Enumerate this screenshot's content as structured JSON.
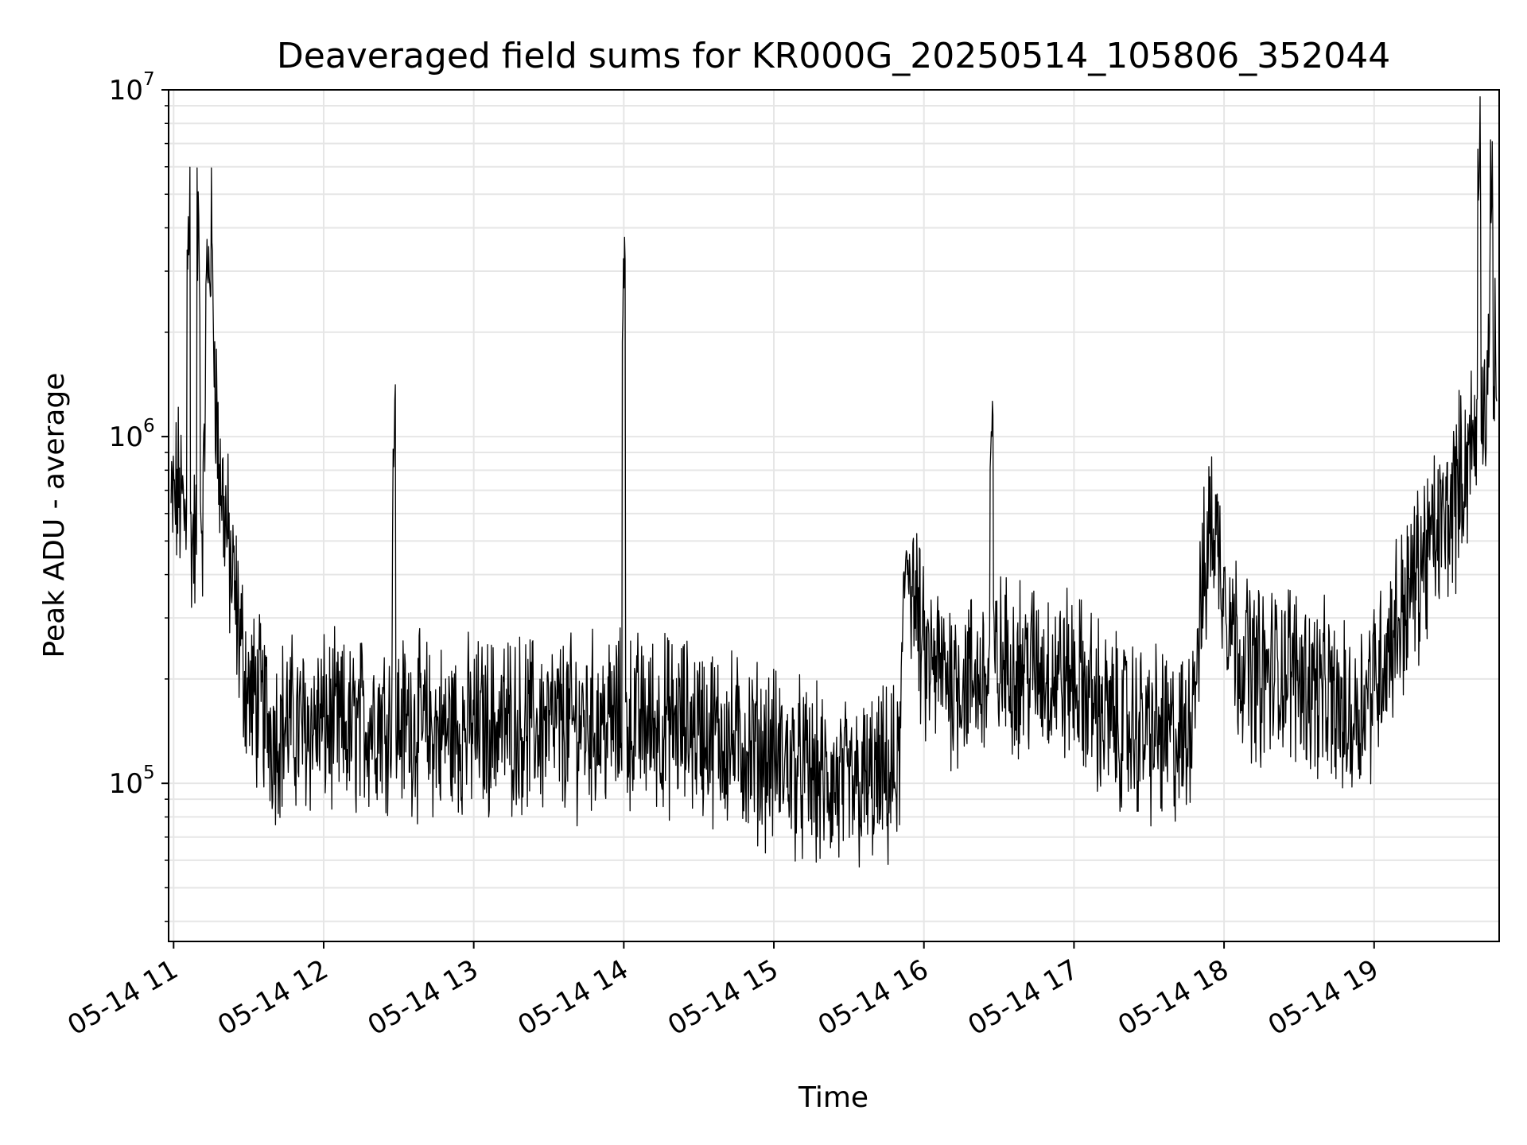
{
  "chart_data": {
    "type": "line",
    "title": "Deaveraged field sums for KR000G_20250514_105806_352044",
    "xlabel": "Time",
    "ylabel": "Peak ADU - average",
    "yscale": "log",
    "ylim": [
      35000,
      10000000
    ],
    "xlim": [
      "2025-05-14 10:58",
      "2025-05-14 19:50"
    ],
    "grid": true,
    "line_color": "#000000",
    "grid_color": "#e6e6e6",
    "x_ticks": [
      {
        "t": "2025-05-14 11:00",
        "label": "05-14 11"
      },
      {
        "t": "2025-05-14 12:00",
        "label": "05-14 12"
      },
      {
        "t": "2025-05-14 13:00",
        "label": "05-14 13"
      },
      {
        "t": "2025-05-14 14:00",
        "label": "05-14 14"
      },
      {
        "t": "2025-05-14 15:00",
        "label": "05-14 15"
      },
      {
        "t": "2025-05-14 16:00",
        "label": "05-14 16"
      },
      {
        "t": "2025-05-14 17:00",
        "label": "05-14 17"
      },
      {
        "t": "2025-05-14 18:00",
        "label": "05-14 18"
      },
      {
        "t": "2025-05-14 19:00",
        "label": "05-14 19"
      }
    ],
    "y_ticks": [
      {
        "value": 100000,
        "base": "10",
        "exp": "5"
      },
      {
        "value": 1000000,
        "base": "10",
        "exp": "6"
      },
      {
        "value": 10000000,
        "base": "10",
        "exp": "7"
      }
    ],
    "series": [
      {
        "points": [
          [
            "2025-05-14 10:59",
            600000
          ],
          [
            "2025-05-14 11:02",
            700000
          ],
          [
            "2025-05-14 11:05",
            550000
          ],
          [
            "2025-05-14 11:06",
            4500000
          ],
          [
            "2025-05-14 11:07",
            500000
          ],
          [
            "2025-05-14 11:10",
            3700000
          ],
          [
            "2025-05-14 11:12",
            600000
          ],
          [
            "2025-05-14 11:13",
            2500000
          ],
          [
            "2025-05-14 11:15",
            3700000
          ],
          [
            "2025-05-14 11:18",
            800000
          ],
          [
            "2025-05-14 11:20",
            650000
          ],
          [
            "2025-05-14 11:23",
            400000
          ],
          [
            "2025-05-14 11:27",
            250000
          ],
          [
            "2025-05-14 11:30",
            180000
          ],
          [
            "2025-05-14 11:35",
            170000
          ],
          [
            "2025-05-14 11:40",
            140000
          ],
          [
            "2025-05-14 11:45",
            150000
          ],
          [
            "2025-05-14 11:50",
            145000
          ],
          [
            "2025-05-14 12:00",
            150000
          ],
          [
            "2025-05-14 12:10",
            140000
          ],
          [
            "2025-05-14 12:20",
            155000
          ],
          [
            "2025-05-14 12:28",
            950000
          ],
          [
            "2025-05-14 12:35",
            150000
          ],
          [
            "2025-05-14 12:45",
            140000
          ],
          [
            "2025-05-14 13:00",
            145000
          ],
          [
            "2025-05-14 13:15",
            150000
          ],
          [
            "2025-05-14 13:30",
            145000
          ],
          [
            "2025-05-14 13:45",
            150000
          ],
          [
            "2025-05-14 14:00",
            2800000
          ],
          [
            "2025-05-14 14:10",
            150000
          ],
          [
            "2025-05-14 14:30",
            145000
          ],
          [
            "2025-05-14 14:45",
            130000
          ],
          [
            "2025-05-14 15:00",
            120000
          ],
          [
            "2025-05-14 15:10",
            110000
          ],
          [
            "2025-05-14 15:20",
            100000
          ],
          [
            "2025-05-14 15:30",
            95000
          ],
          [
            "2025-05-14 15:40",
            100000
          ],
          [
            "2025-05-14 15:50",
            105000
          ],
          [
            "2025-05-14 15:53",
            500000
          ],
          [
            "2025-05-14 16:00",
            220000
          ],
          [
            "2025-05-14 16:15",
            200000
          ],
          [
            "2025-05-14 16:27",
            950000
          ],
          [
            "2025-05-14 16:40",
            220000
          ],
          [
            "2025-05-14 17:00",
            200000
          ],
          [
            "2025-05-14 17:15",
            150000
          ],
          [
            "2025-05-14 17:30",
            140000
          ],
          [
            "2025-05-14 17:45",
            130000
          ],
          [
            "2025-05-14 17:55",
            600000
          ],
          [
            "2025-05-14 18:05",
            250000
          ],
          [
            "2025-05-14 18:15",
            200000
          ],
          [
            "2025-05-14 18:25",
            220000
          ],
          [
            "2025-05-14 18:40",
            180000
          ],
          [
            "2025-05-14 18:50",
            150000
          ],
          [
            "2025-05-14 19:00",
            200000
          ],
          [
            "2025-05-14 19:10",
            300000
          ],
          [
            "2025-05-14 19:20",
            450000
          ],
          [
            "2025-05-14 19:30",
            600000
          ],
          [
            "2025-05-14 19:40",
            1000000
          ],
          [
            "2025-05-14 19:42",
            7800000
          ],
          [
            "2025-05-14 19:45",
            1200000
          ],
          [
            "2025-05-14 19:47",
            5800000
          ],
          [
            "2025-05-14 19:49",
            1500000
          ]
        ]
      }
    ]
  }
}
